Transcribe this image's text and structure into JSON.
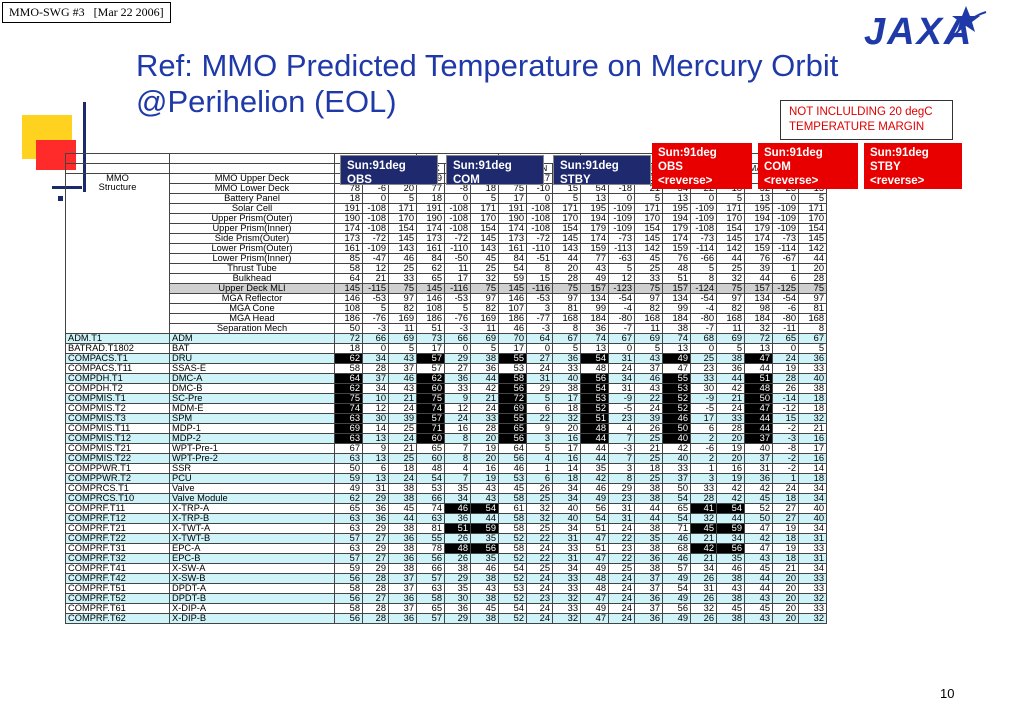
{
  "header_box": {
    "meeting": "MMO-SWG #3",
    "date": "[Mar 22 2006]"
  },
  "title": {
    "line1": "Ref: MMO Predicted Temperature on Mercury Orbit",
    "line2": "@Perihelion (EOL)"
  },
  "logo": {
    "text": "JAXA",
    "color": "#1f3aa8"
  },
  "note": {
    "text": "NOT INCLULDING 20 degC TEMPERATURE MARGIN",
    "color": "#e00000"
  },
  "conditions": [
    {
      "line1": "Sun:91deg",
      "line2": "OBS",
      "line3": "",
      "color": "#1f2a6e"
    },
    {
      "line1": "Sun:91deg",
      "line2": "COM",
      "line3": "",
      "color": "#1f2a6e"
    },
    {
      "line1": "Sun:91deg",
      "line2": "STBY",
      "line3": "",
      "color": "#1f2a6e"
    },
    {
      "line1": "Sun:91deg",
      "line2": "OBS",
      "line3": "<reverse>",
      "color": "#e80000"
    },
    {
      "line1": "Sun:91deg",
      "line2": "COM",
      "line3": "<reverse>",
      "color": "#e80000"
    },
    {
      "line1": "Sun:91deg",
      "line2": "STBY",
      "line3": "<reverse>",
      "color": "#e80000"
    }
  ],
  "col_headers": [
    "MAX",
    "MIN",
    "AVE",
    "MAX",
    "MIN",
    "AVE",
    "MAX",
    "MIN",
    "AVE",
    "MAX",
    "MIN",
    "AVE",
    "MAX",
    "MIN",
    "AVE",
    "MAX",
    "MIN",
    "AVE"
  ],
  "mmo_structure": {
    "label1": "MMO",
    "label2": "Structure"
  },
  "struct_rows": [
    {
      "name": "MMO Upper Deck",
      "v": [
        "65",
        "22",
        "38",
        "79",
        "20",
        "40",
        "61",
        "17",
        "33",
        "56",
        "13",
        "38",
        "69",
        "10",
        "39",
        "52",
        "8",
        "33"
      ]
    },
    {
      "name": "MMO Lower Deck",
      "v": [
        "78",
        "-6",
        "20",
        "77",
        "-8",
        "18",
        "75",
        "-10",
        "15",
        "54",
        "-18",
        "21",
        "54",
        "-22",
        "18",
        "52",
        "-23",
        "15"
      ]
    },
    {
      "name": "Battery Panel",
      "v": [
        "18",
        "0",
        "5",
        "18",
        "0",
        "5",
        "17",
        "0",
        "5",
        "13",
        "0",
        "5",
        "13",
        "0",
        "5",
        "13",
        "0",
        "5"
      ]
    },
    {
      "name": "Solar Cell",
      "v": [
        "191",
        "-108",
        "171",
        "191",
        "-108",
        "171",
        "191",
        "-108",
        "171",
        "195",
        "-109",
        "171",
        "195",
        "-109",
        "171",
        "195",
        "-109",
        "171"
      ]
    },
    {
      "name": "Upper Prism(Outer)",
      "v": [
        "190",
        "-108",
        "170",
        "190",
        "-108",
        "170",
        "190",
        "-108",
        "170",
        "194",
        "-109",
        "170",
        "194",
        "-109",
        "170",
        "194",
        "-109",
        "170"
      ]
    },
    {
      "name": "Upper Prism(Inner)",
      "v": [
        "174",
        "-108",
        "154",
        "174",
        "-108",
        "154",
        "174",
        "-108",
        "154",
        "179",
        "-109",
        "154",
        "179",
        "-108",
        "154",
        "179",
        "-109",
        "154"
      ]
    },
    {
      "name": "Side Prism(Outer)",
      "v": [
        "173",
        "-72",
        "145",
        "173",
        "-72",
        "145",
        "173",
        "-72",
        "145",
        "174",
        "-73",
        "145",
        "174",
        "-73",
        "145",
        "174",
        "-73",
        "145"
      ]
    },
    {
      "name": "Lower Prism(Outer)",
      "v": [
        "161",
        "-109",
        "143",
        "161",
        "-110",
        "143",
        "161",
        "-110",
        "143",
        "159",
        "-113",
        "142",
        "159",
        "-114",
        "142",
        "159",
        "-114",
        "142"
      ]
    },
    {
      "name": "Lower Prism(Inner)",
      "v": [
        "85",
        "-47",
        "46",
        "84",
        "-50",
        "45",
        "84",
        "-51",
        "44",
        "77",
        "-63",
        "45",
        "76",
        "-66",
        "44",
        "76",
        "-67",
        "44"
      ]
    },
    {
      "name": "Thrust Tube",
      "v": [
        "58",
        "12",
        "25",
        "62",
        "11",
        "25",
        "54",
        "8",
        "20",
        "43",
        "5",
        "25",
        "48",
        "5",
        "25",
        "39",
        "1",
        "20"
      ]
    },
    {
      "name": "Bulkhead",
      "v": [
        "64",
        "21",
        "33",
        "65",
        "17",
        "32",
        "59",
        "15",
        "28",
        "49",
        "12",
        "33",
        "51",
        "8",
        "32",
        "44",
        "6",
        "28"
      ]
    },
    {
      "name": "Upper Deck MLI",
      "hl": true,
      "v": [
        "145",
        "-115",
        "75",
        "145",
        "-116",
        "75",
        "145",
        "-116",
        "75",
        "157",
        "-123",
        "75",
        "157",
        "-124",
        "75",
        "157",
        "-125",
        "75"
      ]
    },
    {
      "name": "MGA Reflector",
      "v": [
        "146",
        "-53",
        "97",
        "146",
        "-53",
        "97",
        "146",
        "-53",
        "97",
        "134",
        "-54",
        "97",
        "134",
        "-54",
        "97",
        "134",
        "-54",
        "97"
      ]
    },
    {
      "name": "MGA Cone",
      "v": [
        "108",
        "5",
        "82",
        "108",
        "5",
        "82",
        "107",
        "3",
        "81",
        "99",
        "-4",
        "82",
        "99",
        "-4",
        "82",
        "98",
        "-6",
        "81"
      ]
    },
    {
      "name": "MGA Head",
      "v": [
        "186",
        "-76",
        "169",
        "186",
        "-76",
        "169",
        "186",
        "-77",
        "168",
        "184",
        "-80",
        "168",
        "184",
        "-80",
        "168",
        "184",
        "-80",
        "168"
      ]
    },
    {
      "name": "Separation Mech",
      "v": [
        "50",
        "-3",
        "11",
        "51",
        "-3",
        "11",
        "46",
        "-3",
        "8",
        "36",
        "-7",
        "11",
        "38",
        "-7",
        "11",
        "32",
        "-11",
        "8"
      ]
    }
  ],
  "comp_rows": [
    {
      "id": "ADM.T1",
      "name": "ADM",
      "cy": true,
      "v": [
        "72",
        "66",
        "69",
        "73",
        "66",
        "69",
        "70",
        "64",
        "67",
        "74",
        "67",
        "69",
        "74",
        "68",
        "69",
        "72",
        "65",
        "67"
      ]
    },
    {
      "id": "BATRAD.T1802",
      "name": "BAT",
      "v": [
        "18",
        "0",
        "5",
        "17",
        "0",
        "5",
        "17",
        "0",
        "5",
        "13",
        "0",
        "5",
        "13",
        "0",
        "5",
        "13",
        "0",
        "5"
      ]
    },
    {
      "id": "COMPACS.T1",
      "name": "DRU",
      "cy": true,
      "v": [
        "62",
        "34",
        "43",
        "57",
        "29",
        "38",
        "55",
        "27",
        "36",
        "54",
        "31",
        "43",
        "49",
        "25",
        "38",
        "47",
        "24",
        "36"
      ]
    },
    {
      "id": "COMPACS.T11",
      "name": "SSAS-E",
      "v": [
        "58",
        "28",
        "37",
        "57",
        "27",
        "36",
        "53",
        "24",
        "33",
        "48",
        "24",
        "37",
        "47",
        "23",
        "36",
        "44",
        "19",
        "33"
      ]
    },
    {
      "id": "COMPDH.T1",
      "name": "DMC-A",
      "cy": true,
      "v": [
        "64",
        "37",
        "46",
        "62",
        "36",
        "44",
        "58",
        "31",
        "40",
        "56",
        "34",
        "46",
        "55",
        "33",
        "44",
        "51",
        "28",
        "40"
      ]
    },
    {
      "id": "COMPDH.T2",
      "name": "DMC-B",
      "v": [
        "62",
        "34",
        "43",
        "60",
        "33",
        "42",
        "56",
        "29",
        "38",
        "54",
        "31",
        "43",
        "53",
        "30",
        "42",
        "48",
        "26",
        "38"
      ]
    },
    {
      "id": "COMPMIS.T1",
      "name": "SC-Pre",
      "cy": true,
      "v": [
        "75",
        "10",
        "21",
        "75",
        "9",
        "21",
        "72",
        "5",
        "17",
        "53",
        "-9",
        "22",
        "52",
        "-9",
        "21",
        "50",
        "-14",
        "18"
      ]
    },
    {
      "id": "COMPMIS.T2",
      "name": "MDM-E",
      "v": [
        "74",
        "12",
        "24",
        "74",
        "12",
        "24",
        "69",
        "6",
        "18",
        "52",
        "-5",
        "24",
        "52",
        "-5",
        "24",
        "47",
        "-12",
        "18"
      ]
    },
    {
      "id": "COMPMIS.T3",
      "name": "SPM",
      "cy": true,
      "v": [
        "63",
        "30",
        "39",
        "57",
        "24",
        "33",
        "55",
        "22",
        "32",
        "51",
        "23",
        "39",
        "46",
        "17",
        "33",
        "44",
        "15",
        "32"
      ]
    },
    {
      "id": "COMPMIS.T11",
      "name": "MDP-1",
      "v": [
        "69",
        "14",
        "25",
        "71",
        "16",
        "28",
        "65",
        "9",
        "20",
        "48",
        "4",
        "26",
        "50",
        "6",
        "28",
        "44",
        "-2",
        "21"
      ]
    },
    {
      "id": "COMPMIS.T12",
      "name": "MDP-2",
      "cy": true,
      "v": [
        "63",
        "13",
        "24",
        "60",
        "8",
        "20",
        "56",
        "3",
        "16",
        "44",
        "7",
        "25",
        "40",
        "2",
        "20",
        "37",
        "-3",
        "16"
      ]
    },
    {
      "id": "COMPMIS.T21",
      "name": "WPT-Pre-1",
      "v": [
        "67",
        "9",
        "21",
        "65",
        "7",
        "19",
        "64",
        "5",
        "17",
        "44",
        "-3",
        "21",
        "42",
        "-6",
        "19",
        "40",
        "-8",
        "17"
      ]
    },
    {
      "id": "COMPMIS.T22",
      "name": "WPT-Pre-2",
      "cy": true,
      "v": [
        "63",
        "13",
        "25",
        "60",
        "8",
        "20",
        "56",
        "4",
        "16",
        "44",
        "7",
        "25",
        "40",
        "2",
        "20",
        "37",
        "-2",
        "16"
      ]
    },
    {
      "id": "COMPPWR.T1",
      "name": "SSR",
      "v": [
        "50",
        "6",
        "18",
        "48",
        "4",
        "16",
        "46",
        "1",
        "14",
        "35",
        "3",
        "18",
        "33",
        "1",
        "16",
        "31",
        "-2",
        "14"
      ]
    },
    {
      "id": "COMPPWR.T2",
      "name": "PCU",
      "cy": true,
      "v": [
        "59",
        "13",
        "24",
        "54",
        "7",
        "19",
        "53",
        "6",
        "18",
        "42",
        "8",
        "25",
        "37",
        "3",
        "19",
        "36",
        "1",
        "18"
      ]
    },
    {
      "id": "COMPRCS.T1",
      "name": "Valve",
      "v": [
        "49",
        "31",
        "38",
        "53",
        "35",
        "43",
        "45",
        "26",
        "34",
        "46",
        "29",
        "38",
        "50",
        "33",
        "42",
        "42",
        "24",
        "34"
      ]
    },
    {
      "id": "COMPRCS.T10",
      "name": "Valve Module",
      "cy": true,
      "v": [
        "62",
        "29",
        "38",
        "66",
        "34",
        "43",
        "58",
        "25",
        "34",
        "49",
        "23",
        "38",
        "54",
        "28",
        "42",
        "45",
        "18",
        "34"
      ]
    },
    {
      "id": "COMPRF.T11",
      "name": "X-TRP-A",
      "v": [
        "65",
        "36",
        "45",
        "74",
        "46",
        "54",
        "61",
        "32",
        "40",
        "56",
        "31",
        "44",
        "65",
        "41",
        "54",
        "52",
        "27",
        "40"
      ]
    },
    {
      "id": "COMPRF.T12",
      "name": "X-TRP-B",
      "cy": true,
      "v": [
        "63",
        "36",
        "44",
        "63",
        "36",
        "44",
        "58",
        "32",
        "40",
        "54",
        "31",
        "44",
        "54",
        "32",
        "44",
        "50",
        "27",
        "40"
      ]
    },
    {
      "id": "COMPRF.T21",
      "name": "X-TWT-A",
      "v": [
        "63",
        "29",
        "38",
        "81",
        "51",
        "59",
        "58",
        "25",
        "34",
        "51",
        "24",
        "38",
        "71",
        "45",
        "59",
        "47",
        "19",
        "34"
      ]
    },
    {
      "id": "COMPRF.T22",
      "name": "X-TWT-B",
      "cy": true,
      "v": [
        "57",
        "27",
        "36",
        "55",
        "26",
        "35",
        "52",
        "22",
        "31",
        "47",
        "22",
        "35",
        "46",
        "21",
        "34",
        "42",
        "18",
        "31"
      ]
    },
    {
      "id": "COMPRF.T31",
      "name": "EPC-A",
      "v": [
        "63",
        "29",
        "38",
        "78",
        "48",
        "56",
        "58",
        "24",
        "33",
        "51",
        "23",
        "38",
        "68",
        "42",
        "56",
        "47",
        "19",
        "33"
      ]
    },
    {
      "id": "COMPRF.T32",
      "name": "EPC-B",
      "cy": true,
      "v": [
        "57",
        "27",
        "36",
        "56",
        "26",
        "35",
        "52",
        "22",
        "31",
        "47",
        "22",
        "36",
        "46",
        "21",
        "35",
        "43",
        "18",
        "31"
      ]
    },
    {
      "id": "COMPRF.T41",
      "name": "X-SW-A",
      "v": [
        "59",
        "29",
        "38",
        "66",
        "38",
        "46",
        "54",
        "25",
        "34",
        "49",
        "25",
        "38",
        "57",
        "34",
        "46",
        "45",
        "21",
        "34"
      ]
    },
    {
      "id": "COMPRF.T42",
      "name": "X-SW-B",
      "cy": true,
      "v": [
        "56",
        "28",
        "37",
        "57",
        "29",
        "38",
        "52",
        "24",
        "33",
        "48",
        "24",
        "37",
        "49",
        "26",
        "38",
        "44",
        "20",
        "33"
      ]
    },
    {
      "id": "COMPRF.T51",
      "name": "DPDT-A",
      "v": [
        "58",
        "28",
        "37",
        "63",
        "35",
        "43",
        "53",
        "24",
        "33",
        "48",
        "24",
        "37",
        "54",
        "31",
        "43",
        "44",
        "20",
        "33"
      ]
    },
    {
      "id": "COMPRF.T52",
      "name": "DPDT-B",
      "cy": true,
      "v": [
        "56",
        "27",
        "36",
        "58",
        "30",
        "38",
        "52",
        "23",
        "32",
        "47",
        "24",
        "36",
        "49",
        "26",
        "38",
        "43",
        "20",
        "32"
      ]
    },
    {
      "id": "COMPRF.T61",
      "name": "X-DIP-A",
      "v": [
        "58",
        "28",
        "37",
        "65",
        "36",
        "45",
        "54",
        "24",
        "33",
        "49",
        "24",
        "37",
        "56",
        "32",
        "45",
        "45",
        "20",
        "33"
      ]
    },
    {
      "id": "COMPRF.T62",
      "name": "X-DIP-B",
      "cy": true,
      "v": [
        "56",
        "28",
        "36",
        "57",
        "29",
        "38",
        "52",
        "24",
        "32",
        "47",
        "24",
        "36",
        "49",
        "26",
        "38",
        "43",
        "20",
        "32"
      ]
    }
  ],
  "black_cells": {
    "COMPACS.T1": [
      0,
      3,
      6,
      9,
      12,
      15
    ],
    "COMPDH.T1": [
      0,
      3,
      6,
      9,
      12,
      15
    ],
    "COMPDH.T2": [
      0,
      3,
      6,
      9,
      12,
      15
    ],
    "COMPMIS.T1": [
      0,
      3,
      6,
      9,
      12,
      15
    ],
    "COMPMIS.T2": [
      0,
      3,
      6,
      9,
      12,
      15
    ],
    "COMPMIS.T3": [
      0,
      3,
      6,
      9,
      12,
      15
    ],
    "COMPMIS.T11": [
      0,
      3,
      6,
      9,
      12,
      15
    ],
    "COMPMIS.T12": [
      0,
      3,
      6,
      9,
      12,
      15
    ],
    "COMPRF.T11": [
      4,
      5,
      13,
      14
    ],
    "COMPRF.T21": [
      4,
      5,
      13,
      14
    ],
    "COMPRF.T31": [
      4,
      5,
      13,
      14
    ]
  },
  "page_number": "10"
}
